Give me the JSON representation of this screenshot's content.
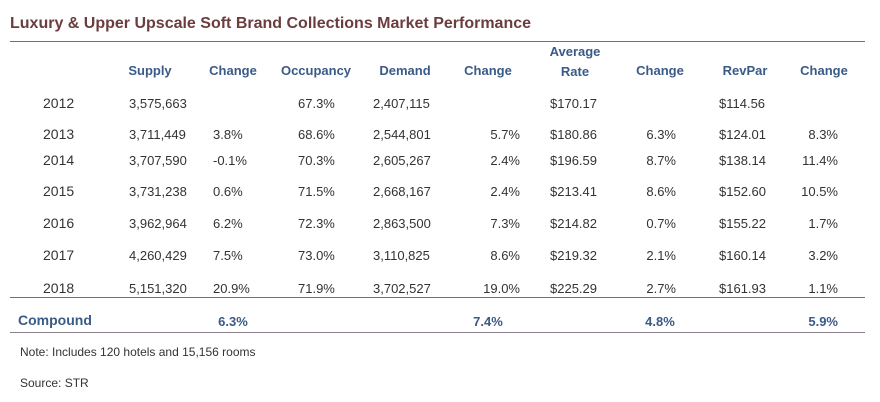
{
  "title": "Luxury & Upper Upscale Soft Brand Collections Market Performance",
  "headers": {
    "supply": "Supply",
    "change1": "Change",
    "occupancy": "Occupancy",
    "demand": "Demand",
    "change2": "Change",
    "avg_rate_line1": "Average",
    "avg_rate_line2": "Rate",
    "change3": "Change",
    "revpar": "RevPar",
    "change4": "Change"
  },
  "rows": [
    {
      "year": "2012",
      "supply": "3,575,663",
      "supply_change": "",
      "occupancy": "67.3%",
      "demand": "2,407,115",
      "demand_change": "",
      "avg_rate": "$170.17",
      "rate_change": "",
      "revpar": "$114.56",
      "revpar_change": ""
    },
    {
      "year": "2013",
      "supply": "3,711,449",
      "supply_change": "3.8%",
      "occupancy": "68.6%",
      "demand": "2,544,801",
      "demand_change": "5.7%",
      "avg_rate": "$180.86",
      "rate_change": "6.3%",
      "revpar": "$124.01",
      "revpar_change": "8.3%"
    },
    {
      "year": "2014",
      "supply": "3,707,590",
      "supply_change": "-0.1%",
      "occupancy": "70.3%",
      "demand": "2,605,267",
      "demand_change": "2.4%",
      "avg_rate": "$196.59",
      "rate_change": "8.7%",
      "revpar": "$138.14",
      "revpar_change": "11.4%"
    },
    {
      "year": "2015",
      "supply": "3,731,238",
      "supply_change": "0.6%",
      "occupancy": "71.5%",
      "demand": "2,668,167",
      "demand_change": "2.4%",
      "avg_rate": "$213.41",
      "rate_change": "8.6%",
      "revpar": "$152.60",
      "revpar_change": "10.5%"
    },
    {
      "year": "2016",
      "supply": "3,962,964",
      "supply_change": "6.2%",
      "occupancy": "72.3%",
      "demand": "2,863,500",
      "demand_change": "7.3%",
      "avg_rate": "$214.82",
      "rate_change": "0.7%",
      "revpar": "$155.22",
      "revpar_change": "1.7%"
    },
    {
      "year": "2017",
      "supply": "4,260,429",
      "supply_change": "7.5%",
      "occupancy": "73.0%",
      "demand": "3,110,825",
      "demand_change": "8.6%",
      "avg_rate": "$219.32",
      "rate_change": "2.1%",
      "revpar": "$160.14",
      "revpar_change": "3.2%"
    },
    {
      "year": "2018",
      "supply": "5,151,320",
      "supply_change": "20.9%",
      "occupancy": "71.9%",
      "demand": "3,702,527",
      "demand_change": "19.0%",
      "avg_rate": "$225.29",
      "rate_change": "2.7%",
      "revpar": "$161.93",
      "revpar_change": "1.1%"
    }
  ],
  "compound": {
    "label": "Compound",
    "supply_change": "6.3%",
    "demand_change": "7.4%",
    "rate_change": "4.8%",
    "revpar_change": "5.9%"
  },
  "note": "Note: Includes 120 hotels and 15,156 rooms",
  "source": "Source: STR",
  "colors": {
    "title": "#6b3d3d",
    "header": "#3a5a87",
    "rule": "#7a6a78"
  }
}
